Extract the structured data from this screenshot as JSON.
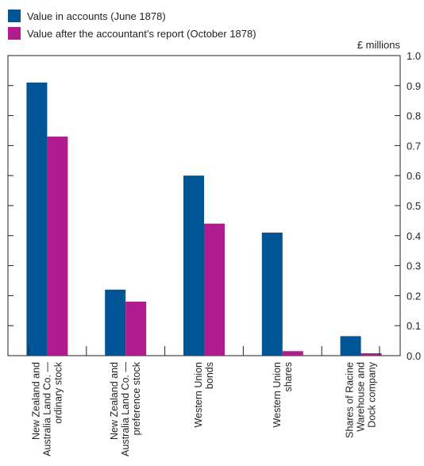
{
  "chart_data": {
    "type": "bar",
    "categories": [
      [
        "New Zealand and",
        "Australia Land Co. —",
        "ordinary stock"
      ],
      [
        "New Zealand and",
        "Australia Land Co. —",
        "preference stock"
      ],
      [
        "Western Union",
        "bonds"
      ],
      [
        "Western Union",
        "shares"
      ],
      [
        "Shares of Racine",
        "Warehouse and",
        "Dock company"
      ]
    ],
    "series": [
      {
        "name": "Value in accounts (June 1878)",
        "color": "#005596",
        "values": [
          0.91,
          0.22,
          0.6,
          0.41,
          0.065
        ]
      },
      {
        "name": "Value after the accountant’s report (October 1878)",
        "color": "#b01c8d",
        "values": [
          0.73,
          0.18,
          0.44,
          0.015,
          0.008
        ]
      }
    ],
    "ylabel": "£ millions",
    "ylim": [
      0,
      1.0
    ],
    "yticks": [
      "0.0",
      "0.1",
      "0.2",
      "0.3",
      "0.4",
      "0.5",
      "0.6",
      "0.7",
      "0.8",
      "0.9",
      "1.0"
    ],
    "y_axis_side": "right",
    "grid": false,
    "legend_position": "top-left"
  }
}
